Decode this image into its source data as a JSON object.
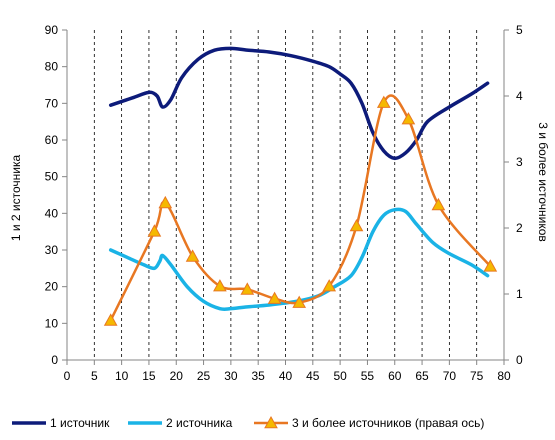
{
  "chart_data": {
    "type": "line",
    "title": "",
    "xlabel": "",
    "ylabel_left": "1 и 2 источника",
    "ylabel_right": "3 и более источников",
    "xlim": [
      0,
      80
    ],
    "ylim_left": [
      0,
      90
    ],
    "ylim_right": [
      0,
      5
    ],
    "x_ticks": [
      0,
      5,
      10,
      15,
      20,
      25,
      30,
      35,
      40,
      45,
      50,
      55,
      60,
      65,
      70,
      75,
      80
    ],
    "y_ticks_left": [
      0,
      10,
      20,
      30,
      40,
      50,
      60,
      70,
      80,
      90
    ],
    "y_ticks_right": [
      0,
      1,
      2,
      3,
      4,
      5
    ],
    "grid": "vertical dashed lines at every 5 units",
    "legend_position": "bottom",
    "series": [
      {
        "name": "1 источник",
        "axis": "left",
        "color": "#0d1b7a",
        "markers": false,
        "x": [
          8,
          12,
          15,
          16.5,
          17.5,
          19,
          21,
          24,
          27,
          30,
          33,
          37,
          41,
          45,
          48,
          50,
          52,
          54,
          56,
          58,
          60,
          62,
          64,
          66,
          70,
          74,
          77
        ],
        "y": [
          69.5,
          71.5,
          73,
          72,
          69,
          71,
          77,
          82,
          84.5,
          85,
          84.5,
          84,
          83,
          81.5,
          80,
          78,
          75.5,
          70,
          62,
          57,
          55,
          56.5,
          60,
          65,
          69,
          72.5,
          75.5
        ]
      },
      {
        "name": "2 источника",
        "axis": "left",
        "color": "#1ab3e6",
        "markers": false,
        "x": [
          8,
          11,
          14,
          16,
          17,
          17.5,
          19,
          22,
          25,
          28,
          30,
          33,
          37,
          42,
          46,
          49,
          52,
          54,
          56,
          58,
          60,
          62,
          64,
          67,
          70,
          74,
          77
        ],
        "y": [
          30,
          28,
          26,
          25,
          27,
          28.5,
          26,
          20,
          16,
          14,
          14,
          14.5,
          15,
          16,
          17.5,
          20,
          23,
          28,
          35,
          39.5,
          41,
          40.5,
          37,
          32,
          29,
          26,
          23
        ]
      },
      {
        "name": "3 и более источников (правая ось)",
        "axis": "right",
        "color": "#e87722",
        "markers": true,
        "marker_color": "#f5b800",
        "x": [
          8,
          16,
          18,
          23,
          28,
          33,
          38,
          42.5,
          48,
          53,
          58,
          62.5,
          68,
          77.5
        ],
        "y": [
          0.6,
          1.95,
          2.38,
          1.57,
          1.12,
          1.07,
          0.93,
          0.87,
          1.12,
          2.03,
          3.9,
          3.65,
          2.35,
          1.42
        ],
        "marker_x": [
          8,
          16,
          18,
          23,
          28,
          33,
          38,
          42.5,
          48,
          53,
          58,
          62.5,
          68,
          77.5
        ],
        "marker_y": [
          0.6,
          1.95,
          2.38,
          1.57,
          1.12,
          1.07,
          0.93,
          0.87,
          1.12,
          2.03,
          3.9,
          3.65,
          2.35,
          1.42
        ]
      }
    ]
  }
}
